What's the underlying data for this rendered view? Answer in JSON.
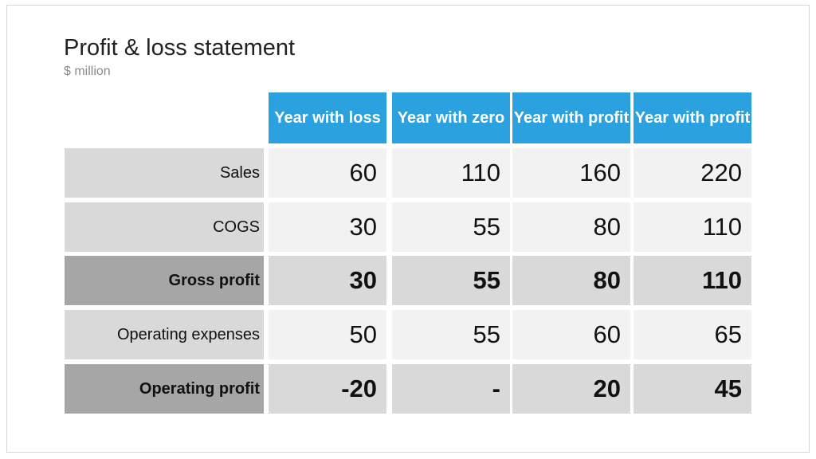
{
  "title": "Profit & loss statement",
  "subtitle": "$ million",
  "columns": [
    "Year with loss",
    "Year with zero",
    "Year with profit",
    "Year with profit"
  ],
  "rows": [
    {
      "label": "Sales",
      "bold": false,
      "values": [
        "60",
        "110",
        "160",
        "220"
      ]
    },
    {
      "label": "COGS",
      "bold": false,
      "values": [
        "30",
        "55",
        "80",
        "110"
      ]
    },
    {
      "label": "Gross profit",
      "bold": true,
      "values": [
        "30",
        "55",
        "80",
        "110"
      ]
    },
    {
      "label": "Operating expenses",
      "bold": false,
      "values": [
        "50",
        "55",
        "60",
        "65"
      ]
    },
    {
      "label": "Operating profit",
      "bold": true,
      "values": [
        "-20",
        "-",
        "20",
        "45"
      ]
    }
  ],
  "colors": {
    "header_blue": "#2ca1df",
    "row_label_light": "#d9d9d9",
    "row_label_dark": "#a6a6a6",
    "value_light": "#f2f2f2",
    "value_dark": "#d9d9d9"
  }
}
